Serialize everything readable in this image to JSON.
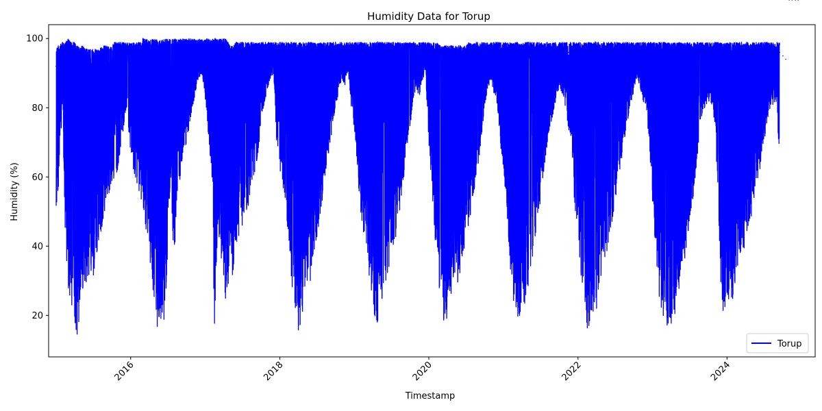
{
  "chart_data": {
    "type": "line",
    "title": "Humidity Data for Torup",
    "xlabel": "Timestamp",
    "ylabel": "Humidity (%)",
    "x_ticks": [
      "2016",
      "2018",
      "2020",
      "2022",
      "2024"
    ],
    "y_ticks": [
      20,
      40,
      60,
      80,
      100
    ],
    "xlim": [
      "2014-11-25",
      "2025-03-08"
    ],
    "ylim": [
      8,
      104
    ],
    "grid": false,
    "legend_position": "lower right",
    "series": [
      {
        "name": "Torup",
        "color": "#0000ff",
        "x": [
          "2015-01-01",
          "2015-01-15",
          "2015-02-01",
          "2015-02-15",
          "2015-03-01",
          "2015-03-15",
          "2015-04-01",
          "2015-04-15",
          "2015-05-01",
          "2015-05-15",
          "2015-06-01",
          "2015-06-15",
          "2015-07-01",
          "2015-07-15",
          "2015-08-01",
          "2015-08-15",
          "2015-09-01",
          "2015-09-15",
          "2015-10-01",
          "2015-10-15",
          "2015-11-01",
          "2015-11-15",
          "2015-12-01",
          "2015-12-15",
          "2016-01-01",
          "2016-01-15",
          "2016-02-01",
          "2016-02-15",
          "2016-03-01",
          "2016-03-15",
          "2016-04-01",
          "2016-04-15",
          "2016-05-01",
          "2016-05-15",
          "2016-06-01",
          "2016-06-15",
          "2016-07-01",
          "2016-07-15",
          "2016-08-01",
          "2016-08-15",
          "2016-09-01",
          "2016-09-15",
          "2016-10-01",
          "2016-10-15",
          "2016-11-01",
          "2016-11-15",
          "2016-12-01",
          "2016-12-15",
          "2017-01-01",
          "2017-01-15",
          "2017-02-01",
          "2017-02-15",
          "2017-03-01",
          "2017-03-15",
          "2017-04-01",
          "2017-04-15",
          "2017-05-01",
          "2017-05-15",
          "2017-06-01",
          "2017-06-15",
          "2017-07-01",
          "2017-07-15",
          "2017-08-01",
          "2017-08-15",
          "2017-09-01",
          "2017-09-15",
          "2017-10-01",
          "2017-10-15",
          "2017-11-01",
          "2017-11-15",
          "2017-12-01",
          "2017-12-15",
          "2018-01-01",
          "2018-01-15",
          "2018-02-01",
          "2018-02-15",
          "2018-03-01",
          "2018-03-15",
          "2018-04-01",
          "2018-04-15",
          "2018-05-01",
          "2018-05-15",
          "2018-06-01",
          "2018-06-15",
          "2018-07-01",
          "2018-07-15",
          "2018-08-01",
          "2018-08-15",
          "2018-09-01",
          "2018-09-15",
          "2018-10-01",
          "2018-10-15",
          "2018-11-01",
          "2018-11-15",
          "2018-12-01",
          "2018-12-15",
          "2019-01-01",
          "2019-01-15",
          "2019-02-01",
          "2019-02-15",
          "2019-03-01",
          "2019-03-15",
          "2019-04-01",
          "2019-04-15",
          "2019-05-01",
          "2019-05-15",
          "2019-06-01",
          "2019-06-15",
          "2019-07-01",
          "2019-07-15",
          "2019-08-01",
          "2019-08-15",
          "2019-09-01",
          "2019-09-15",
          "2019-10-01",
          "2019-10-15",
          "2019-11-01",
          "2019-11-15",
          "2019-12-01",
          "2019-12-15",
          "2020-01-01",
          "2020-01-15",
          "2020-02-01",
          "2020-02-15",
          "2020-03-01",
          "2020-03-15",
          "2020-04-01",
          "2020-04-15",
          "2020-05-01",
          "2020-05-15",
          "2020-06-01",
          "2020-06-15",
          "2020-07-01",
          "2020-07-15",
          "2020-08-01",
          "2020-08-15",
          "2020-09-01",
          "2020-09-15",
          "2020-10-01",
          "2020-10-15",
          "2020-11-01",
          "2020-11-15",
          "2020-12-01",
          "2020-12-15",
          "2021-01-01",
          "2021-01-15",
          "2021-02-01",
          "2021-02-15",
          "2021-03-01",
          "2021-03-15",
          "2021-04-01",
          "2021-04-15",
          "2021-05-01",
          "2021-05-15",
          "2021-06-01",
          "2021-06-15",
          "2021-07-01",
          "2021-07-15",
          "2021-08-01",
          "2021-08-15",
          "2021-09-01",
          "2021-09-15",
          "2021-10-01",
          "2021-10-15",
          "2021-11-01",
          "2021-11-15",
          "2021-12-01",
          "2021-12-15",
          "2022-01-01",
          "2022-01-15",
          "2022-02-01",
          "2022-02-15",
          "2022-03-01",
          "2022-03-15",
          "2022-04-01",
          "2022-04-15",
          "2022-05-01",
          "2022-05-15",
          "2022-06-01",
          "2022-06-15",
          "2022-07-01",
          "2022-07-15",
          "2022-08-01",
          "2022-08-15",
          "2022-09-01",
          "2022-09-15",
          "2022-10-01",
          "2022-10-15",
          "2022-11-01",
          "2022-11-15",
          "2022-12-01",
          "2022-12-15",
          "2023-01-01",
          "2023-01-15",
          "2023-02-01",
          "2023-02-15",
          "2023-03-01",
          "2023-03-15",
          "2023-04-01",
          "2023-04-15",
          "2023-05-01",
          "2023-05-15",
          "2023-06-01",
          "2023-06-15",
          "2023-07-01",
          "2023-07-15",
          "2023-08-01",
          "2023-08-15",
          "2023-09-01",
          "2023-09-15",
          "2023-10-01",
          "2023-10-15",
          "2023-11-01",
          "2023-11-15",
          "2023-12-01",
          "2023-12-15",
          "2024-01-01",
          "2024-01-15",
          "2024-02-01",
          "2024-02-15",
          "2024-03-01",
          "2024-03-15",
          "2024-04-01",
          "2024-04-15",
          "2024-05-01",
          "2024-05-15",
          "2024-06-01",
          "2024-06-15",
          "2024-07-01",
          "2024-07-15",
          "2024-08-01",
          "2024-08-15",
          "2024-09-01",
          "2024-09-15",
          "2024-10-01",
          "2024-10-15",
          "2024-11-01",
          "2024-11-15",
          "2024-12-01",
          "2024-12-15"
        ],
        "max": [
          98,
          98,
          99,
          99,
          100,
          99,
          99,
          98,
          98,
          98,
          97,
          97,
          97,
          97,
          97,
          98,
          98,
          98,
          98,
          99,
          99,
          99,
          99,
          99,
          99,
          99,
          99,
          99,
          100,
          100,
          100,
          100,
          100,
          100,
          100,
          100,
          100,
          100,
          100,
          100,
          100,
          100,
          100,
          100,
          100,
          100,
          100,
          100,
          100,
          100,
          100,
          100,
          100,
          100,
          100,
          100,
          98,
          98,
          99,
          99,
          99,
          99,
          99,
          99,
          99,
          99,
          99,
          99,
          99,
          99,
          99,
          99,
          99,
          99,
          99,
          99,
          99,
          99,
          99,
          99,
          99,
          99,
          99,
          99,
          99,
          99,
          99,
          99,
          99,
          99,
          99,
          99,
          99,
          99,
          99,
          99,
          99,
          99,
          99,
          99,
          99,
          99,
          99,
          99,
          99,
          99,
          99,
          99,
          99,
          99,
          99,
          99,
          99,
          99,
          99,
          99,
          99,
          99,
          99,
          99,
          99,
          99,
          99,
          99,
          98,
          98,
          98,
          98,
          98,
          98,
          98,
          98,
          98,
          99,
          99,
          99,
          99,
          99,
          99,
          99,
          99,
          99,
          99,
          99,
          99,
          99,
          99,
          99,
          99,
          99,
          99,
          99,
          99,
          99,
          99,
          99,
          99,
          99,
          99,
          99,
          99,
          99,
          99,
          99,
          99,
          99,
          99,
          99,
          99,
          99,
          99,
          99,
          99,
          99,
          99,
          99,
          99,
          99,
          99,
          99,
          99,
          99,
          99,
          99,
          99,
          99,
          99,
          99,
          99,
          99,
          99,
          99,
          99,
          99,
          99,
          99,
          99,
          99,
          99,
          99,
          99,
          99,
          99,
          99,
          99,
          99,
          99,
          99,
          99,
          99,
          99,
          99,
          99,
          99,
          99,
          99,
          99,
          99,
          99,
          99,
          99,
          99,
          99,
          99,
          99,
          99,
          99,
          99,
          99,
          99,
          99,
          99,
          99,
          99,
          99,
          99,
          99,
          99,
          99,
          99,
          99,
          99,
          99,
          99,
          99,
          99,
          99,
          99
        ],
        "min": [
          47,
          60,
          80,
          41,
          25,
          23,
          19,
          12,
          24,
          28,
          30,
          32,
          30,
          35,
          42,
          46,
          52,
          55,
          58,
          60,
          62,
          70,
          75,
          80,
          65,
          60,
          58,
          55,
          50,
          45,
          40,
          27,
          21,
          14,
          20,
          17,
          40,
          62,
          30,
          55,
          60,
          65,
          70,
          74,
          80,
          85,
          88,
          90,
          82,
          72,
          60,
          15,
          40,
          39,
          30,
          21,
          35,
          31,
          37,
          42,
          44,
          48,
          52,
          55,
          60,
          66,
          75,
          80,
          85,
          88,
          90,
          70,
          62,
          55,
          50,
          40,
          28,
          22,
          15,
          18,
          22,
          26,
          30,
          38,
          42,
          47,
          55,
          62,
          68,
          74,
          80,
          84,
          88,
          86,
          90,
          80,
          74,
          62,
          50,
          43,
          38,
          31,
          22,
          15,
          20,
          24,
          28,
          32,
          36,
          40,
          45,
          52,
          60,
          68,
          74,
          82,
          86,
          82,
          88,
          90,
          70,
          52,
          41,
          30,
          23,
          18,
          19,
          22,
          25,
          28,
          32,
          36,
          41,
          46,
          52,
          58,
          64,
          72,
          80,
          85,
          88,
          84,
          80,
          70,
          62,
          52,
          35,
          26,
          19,
          18,
          20,
          22,
          28,
          34,
          40,
          46,
          52,
          60,
          68,
          74,
          78,
          82,
          86,
          84,
          80,
          74,
          70,
          52,
          40,
          30,
          22,
          14,
          18,
          20,
          21,
          26,
          32,
          36,
          40,
          46,
          52,
          58,
          64,
          70,
          76,
          80,
          84,
          88,
          86,
          82,
          80,
          70,
          52,
          36,
          26,
          18,
          17,
          16,
          17,
          18,
          24,
          28,
          34,
          38,
          46,
          52,
          60,
          70,
          78,
          80,
          82,
          80,
          75,
          60,
          30,
          19,
          25,
          24,
          24,
          32,
          36,
          38,
          40,
          44,
          48,
          52,
          58,
          64,
          70,
          76,
          80,
          80,
          82,
          60
        ],
        "sample": [
          92,
          88,
          96,
          70,
          85,
          60,
          75,
          55,
          80,
          72,
          68,
          85,
          78,
          74,
          80,
          86,
          90,
          92,
          94,
          95,
          96,
          97,
          97,
          98,
          95,
          93,
          90,
          88,
          85,
          80,
          75,
          70,
          68,
          72,
          78,
          82,
          88,
          90,
          85,
          88,
          92,
          94,
          95,
          97,
          98,
          98,
          99,
          99,
          97,
          95,
          90,
          85,
          82,
          78,
          75,
          70,
          72,
          74,
          76,
          78,
          80,
          82,
          84,
          86,
          88,
          90,
          93,
          95,
          96,
          97,
          98,
          96,
          94,
          90,
          86,
          80,
          75,
          70,
          66,
          68,
          70,
          72,
          74,
          76,
          78,
          80,
          84,
          88,
          90,
          92,
          94,
          95,
          96,
          97,
          98,
          96,
          94,
          90,
          85,
          80,
          76,
          72,
          68,
          65,
          66,
          68,
          70,
          72,
          74,
          76,
          78,
          80,
          84,
          88,
          90,
          92,
          94,
          95,
          96,
          97,
          95,
          90,
          85,
          80,
          76,
          72,
          70,
          68,
          68,
          70,
          72,
          74,
          76,
          78,
          80,
          84,
          88,
          90,
          92,
          94,
          95,
          96,
          96,
          95,
          92,
          88,
          84,
          80,
          76,
          72,
          70,
          70,
          72,
          74,
          76,
          78,
          80,
          82,
          85,
          88,
          90,
          92,
          94,
          95,
          96,
          96,
          94,
          90,
          85,
          80,
          76,
          72,
          70,
          70,
          72,
          74,
          76,
          78,
          80,
          82,
          84,
          86,
          88,
          90,
          92,
          94,
          95,
          96,
          97,
          96,
          93,
          88,
          84,
          80,
          76,
          72,
          70,
          72,
          74,
          76,
          78,
          80,
          82,
          84,
          86,
          88,
          90,
          92,
          94,
          95,
          96,
          96,
          94,
          90,
          85,
          80,
          78,
          76,
          76,
          78,
          80,
          82,
          84,
          86,
          88,
          90,
          92,
          93,
          94,
          95,
          96,
          97,
          97,
          96,
          95,
          94
        ]
      }
    ]
  }
}
